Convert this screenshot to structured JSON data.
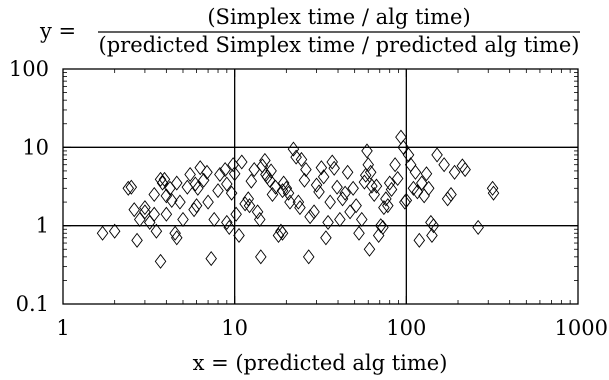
{
  "chart_data": {
    "type": "scatter",
    "title": {
      "lhs": "y =",
      "numerator": "(Simplex time / alg time)",
      "denominator": "(predicted Simplex time / predicted alg time)"
    },
    "xlabel": "x = (predicted alg time)",
    "ylabel": "",
    "x_scale": "log",
    "y_scale": "log",
    "xlim": [
      1,
      1000
    ],
    "ylim": [
      0.1,
      100
    ],
    "x_ticks": [
      1,
      10,
      100,
      1000
    ],
    "x_tick_labels": [
      "1",
      "10",
      "100",
      "1000"
    ],
    "y_ticks": [
      0.1,
      1,
      10,
      100
    ],
    "y_tick_labels": [
      "0.1",
      "1",
      "10",
      "100"
    ],
    "grid": true,
    "legend": "none",
    "marker": "open-diamond",
    "colors": {
      "marker": "#000000",
      "grid": "#000000",
      "axes": "#000000"
    },
    "series": [
      {
        "points": [
          [
            1.7,
            0.8
          ],
          [
            2.0,
            0.85
          ],
          [
            2.4,
            3.0
          ],
          [
            2.5,
            3.1
          ],
          [
            2.6,
            1.6
          ],
          [
            2.7,
            0.65
          ],
          [
            2.8,
            1.2
          ],
          [
            3.0,
            1.5
          ],
          [
            3.0,
            1.7
          ],
          [
            3.2,
            1.1
          ],
          [
            3.4,
            1.4
          ],
          [
            3.4,
            2.5
          ],
          [
            3.5,
            0.85
          ],
          [
            3.7,
            0.35
          ],
          [
            3.7,
            3.9
          ],
          [
            3.8,
            3.5
          ],
          [
            3.9,
            3.9
          ],
          [
            4.0,
            1.4
          ],
          [
            4.0,
            2.4
          ],
          [
            4.2,
            3.0
          ],
          [
            4.3,
            2.1
          ],
          [
            4.5,
            0.8
          ],
          [
            4.6,
            0.7
          ],
          [
            4.6,
            3.5
          ],
          [
            4.8,
            2.0
          ],
          [
            5.0,
            1.2
          ],
          [
            5.3,
            3.1
          ],
          [
            5.5,
            4.5
          ],
          [
            5.8,
            1.6
          ],
          [
            5.9,
            3.4
          ],
          [
            6.0,
            1.8
          ],
          [
            6.1,
            3.0
          ],
          [
            6.3,
            5.5
          ],
          [
            6.6,
            3.8
          ],
          [
            6.9,
            4.8
          ],
          [
            7.0,
            2.0
          ],
          [
            7.3,
            0.38
          ],
          [
            7.6,
            1.2
          ],
          [
            8.0,
            2.8
          ],
          [
            8.2,
            4.5
          ],
          [
            8.8,
            5.2
          ],
          [
            9.0,
            3.4
          ],
          [
            9.0,
            1.1
          ],
          [
            9.3,
            0.95
          ],
          [
            9.6,
            2.6
          ],
          [
            9.8,
            6.0
          ],
          [
            10.0,
            4.6
          ],
          [
            10.2,
            1.4
          ],
          [
            10.6,
            0.75
          ],
          [
            11.0,
            6.5
          ],
          [
            11.5,
            1.9
          ],
          [
            12.0,
            2.2
          ],
          [
            12.2,
            1.8
          ],
          [
            12.5,
            3.7
          ],
          [
            13.0,
            5.2
          ],
          [
            13.6,
            1.5
          ],
          [
            14.0,
            1.2
          ],
          [
            14.2,
            0.4
          ],
          [
            14.5,
            5.8
          ],
          [
            15.0,
            6.8
          ],
          [
            15.2,
            4.5
          ],
          [
            15.5,
            4.2
          ],
          [
            16.0,
            3.8
          ],
          [
            16.3,
            5.0
          ],
          [
            16.6,
            2.5
          ],
          [
            17.3,
            3.1
          ],
          [
            18.0,
            0.75
          ],
          [
            18.6,
            0.85
          ],
          [
            19.0,
            0.8
          ],
          [
            19.0,
            2.8
          ],
          [
            19.3,
            3.5
          ],
          [
            20.0,
            3.0
          ],
          [
            20.6,
            2.6
          ],
          [
            21.0,
            2.0
          ],
          [
            22.0,
            9.5
          ],
          [
            22.8,
            7.5
          ],
          [
            23.5,
            2.0
          ],
          [
            24.0,
            1.7
          ],
          [
            24.5,
            7.0
          ],
          [
            25.5,
            3.8
          ],
          [
            26.0,
            5.2
          ],
          [
            27.0,
            0.4
          ],
          [
            27.5,
            1.3
          ],
          [
            29.0,
            1.5
          ],
          [
            30.0,
            3.3
          ],
          [
            31.0,
            2.7
          ],
          [
            32.0,
            5.5
          ],
          [
            33.0,
            4.2
          ],
          [
            34.0,
            0.7
          ],
          [
            35.0,
            1.1
          ],
          [
            36.0,
            2.0
          ],
          [
            37.0,
            6.5
          ],
          [
            38.0,
            5.4
          ],
          [
            39.5,
            3.1
          ],
          [
            41.0,
            1.2
          ],
          [
            42.5,
            2.2
          ],
          [
            44.0,
            2.6
          ],
          [
            45.5,
            4.8
          ],
          [
            47.0,
            1.5
          ],
          [
            49.0,
            3.0
          ],
          [
            51.0,
            1.8
          ],
          [
            53.0,
            0.8
          ],
          [
            55.0,
            1.2
          ],
          [
            57.0,
            3.6
          ],
          [
            58.0,
            4.4
          ],
          [
            59.0,
            9.0
          ],
          [
            60.0,
            6.0
          ],
          [
            61.0,
            0.5
          ],
          [
            62.0,
            4.8
          ],
          [
            63.0,
            3.2
          ],
          [
            65.0,
            2.5
          ],
          [
            67.0,
            3.2
          ],
          [
            69.0,
            0.75
          ],
          [
            71.0,
            1.0
          ],
          [
            73.0,
            0.95
          ],
          [
            74.0,
            1.7
          ],
          [
            76.0,
            2.2
          ],
          [
            78.0,
            1.8
          ],
          [
            80.0,
            3.5
          ],
          [
            82.0,
            2.9
          ],
          [
            86.0,
            6.0
          ],
          [
            89.0,
            4.0
          ],
          [
            93.0,
            13.5
          ],
          [
            96.0,
            10.0
          ],
          [
            98.0,
            2.0
          ],
          [
            100.0,
            2.1
          ],
          [
            103.0,
            8.0
          ],
          [
            106.0,
            6.0
          ],
          [
            110.0,
            3.0
          ],
          [
            113.0,
            4.8
          ],
          [
            116.0,
            2.7
          ],
          [
            119.0,
            0.65
          ],
          [
            123.0,
            3.5
          ],
          [
            127.0,
            2.4
          ],
          [
            131.0,
            4.6
          ],
          [
            135.0,
            3.0
          ],
          [
            139.0,
            1.1
          ],
          [
            141.0,
            0.75
          ],
          [
            144.0,
            1.0
          ],
          [
            151.0,
            8.0
          ],
          [
            166.0,
            6.0
          ],
          [
            174.0,
            2.2
          ],
          [
            182.0,
            2.5
          ],
          [
            191.0,
            4.8
          ],
          [
            212.0,
            5.8
          ],
          [
            220.0,
            5.2
          ],
          [
            262.0,
            0.95
          ],
          [
            318.0,
            3.0
          ],
          [
            322.0,
            2.6
          ]
        ]
      }
    ]
  }
}
